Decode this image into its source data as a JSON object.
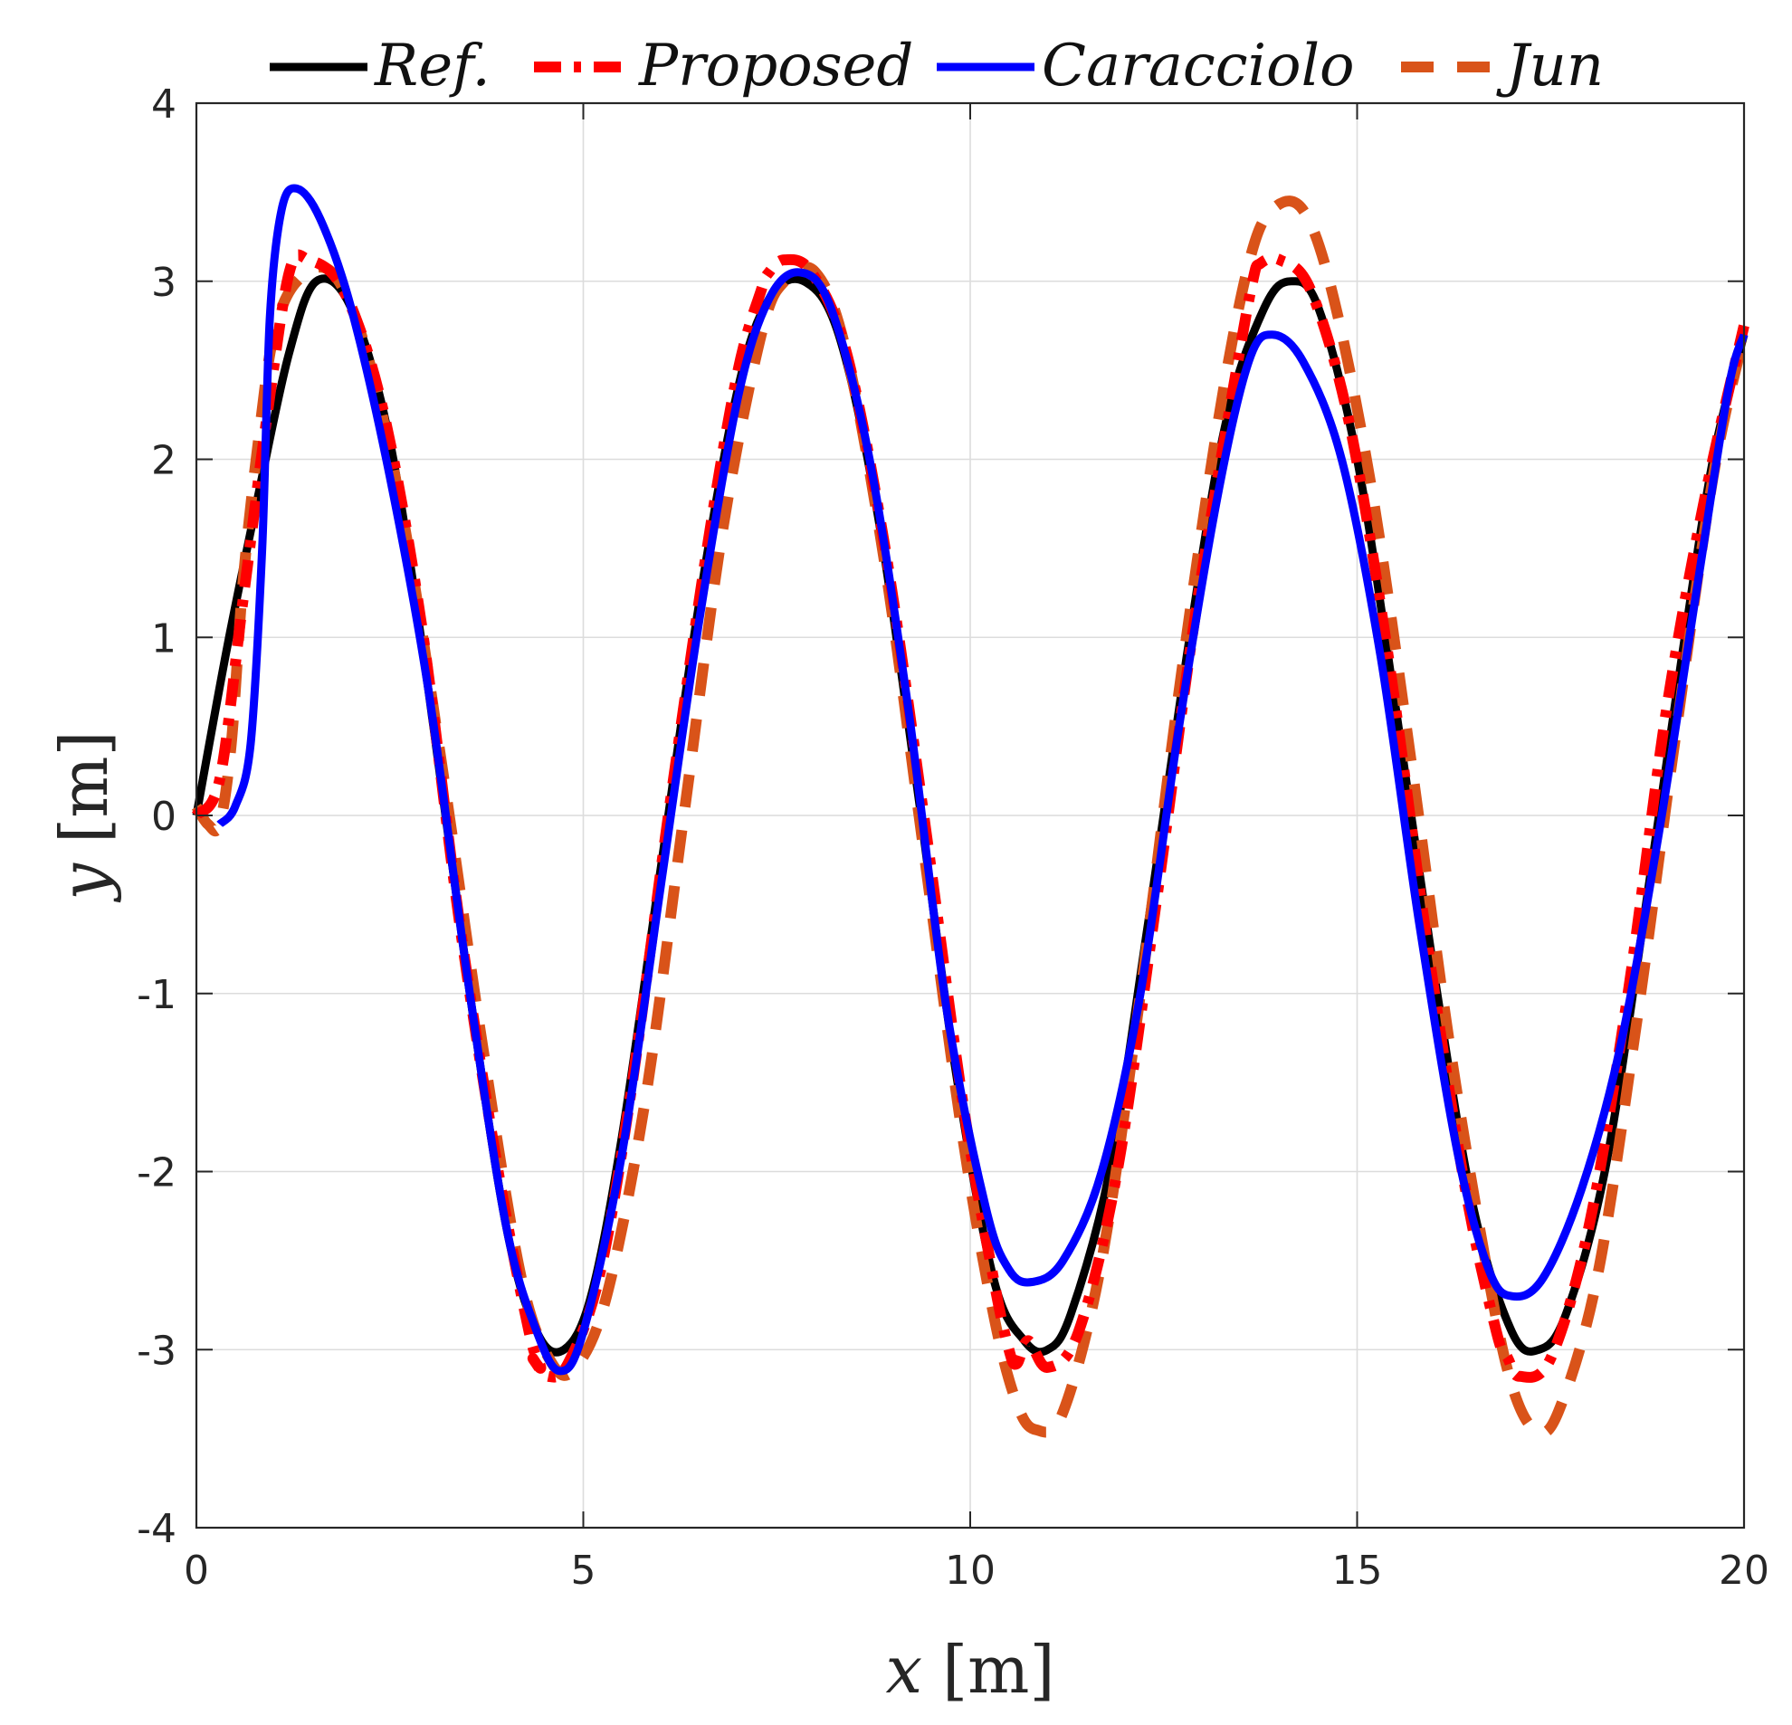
{
  "chart_data": {
    "type": "line",
    "title": "",
    "xlabel_var": "x",
    "ylabel_var": "y",
    "unit": "[m]",
    "xlim": [
      0,
      20
    ],
    "ylim": [
      -4,
      4
    ],
    "xticks": [
      0,
      5,
      10,
      15,
      20
    ],
    "yticks": [
      -4,
      -3,
      -2,
      -1,
      0,
      1,
      2,
      3,
      4
    ],
    "grid": true,
    "legend_position": "top",
    "series": [
      {
        "name": "Ref.",
        "color": "#000000",
        "style": "solid",
        "points": [
          [
            0,
            0
          ],
          [
            0.4,
            0.95
          ],
          [
            0.8,
            1.8
          ],
          [
            1.2,
            2.6
          ],
          [
            1.55,
            3.0
          ],
          [
            2.0,
            2.85
          ],
          [
            2.5,
            2.1
          ],
          [
            3.0,
            0.7
          ],
          [
            3.5,
            -0.9
          ],
          [
            4.0,
            -2.3
          ],
          [
            4.4,
            -2.9
          ],
          [
            4.75,
            -3.0
          ],
          [
            5.1,
            -2.7
          ],
          [
            5.5,
            -1.8
          ],
          [
            6.0,
            -0.3
          ],
          [
            6.5,
            1.2
          ],
          [
            7.0,
            2.4
          ],
          [
            7.4,
            2.9
          ],
          [
            7.85,
            3.0
          ],
          [
            8.3,
            2.7
          ],
          [
            8.8,
            1.7
          ],
          [
            9.3,
            0.2
          ],
          [
            9.8,
            -1.4
          ],
          [
            10.3,
            -2.6
          ],
          [
            10.7,
            -2.95
          ],
          [
            11.0,
            -3.0
          ],
          [
            11.3,
            -2.8
          ],
          [
            11.8,
            -2.0
          ],
          [
            12.3,
            -0.6
          ],
          [
            12.8,
            0.9
          ],
          [
            13.3,
            2.2
          ],
          [
            13.8,
            2.85
          ],
          [
            14.15,
            3.0
          ],
          [
            14.5,
            2.85
          ],
          [
            15.0,
            2.0
          ],
          [
            15.5,
            0.6
          ],
          [
            16.0,
            -0.9
          ],
          [
            16.5,
            -2.2
          ],
          [
            17.0,
            -2.9
          ],
          [
            17.35,
            -3.0
          ],
          [
            17.7,
            -2.8
          ],
          [
            18.2,
            -2.0
          ],
          [
            18.7,
            -0.6
          ],
          [
            19.2,
            0.9
          ],
          [
            19.6,
            2.0
          ],
          [
            20.0,
            2.7
          ]
        ]
      },
      {
        "name": "Proposed",
        "color": "#ff0000",
        "style": "dashdot",
        "points": [
          [
            0,
            0
          ],
          [
            0.3,
            0.2
          ],
          [
            0.6,
            1.2
          ],
          [
            0.9,
            2.2
          ],
          [
            1.2,
            3.05
          ],
          [
            1.45,
            3.12
          ],
          [
            1.9,
            2.95
          ],
          [
            2.4,
            2.3
          ],
          [
            2.9,
            1.1
          ],
          [
            3.4,
            -0.6
          ],
          [
            3.9,
            -2.0
          ],
          [
            4.3,
            -2.9
          ],
          [
            4.45,
            -3.1
          ],
          [
            4.35,
            -3.05
          ],
          [
            4.55,
            -3.15
          ],
          [
            4.8,
            -3.08
          ],
          [
            5.2,
            -2.6
          ],
          [
            5.6,
            -1.6
          ],
          [
            6.1,
            0.0
          ],
          [
            6.6,
            1.5
          ],
          [
            7.0,
            2.5
          ],
          [
            7.3,
            2.95
          ],
          [
            7.4,
            3.05
          ],
          [
            7.6,
            3.12
          ],
          [
            7.95,
            3.05
          ],
          [
            8.4,
            2.6
          ],
          [
            8.9,
            1.5
          ],
          [
            9.4,
            0.0
          ],
          [
            9.9,
            -1.6
          ],
          [
            10.3,
            -2.6
          ],
          [
            10.5,
            -3.0
          ],
          [
            10.6,
            -3.08
          ],
          [
            10.75,
            -2.95
          ],
          [
            11.0,
            -3.1
          ],
          [
            11.4,
            -2.9
          ],
          [
            11.9,
            -2.0
          ],
          [
            12.4,
            -0.5
          ],
          [
            12.9,
            1.1
          ],
          [
            13.4,
            2.4
          ],
          [
            13.65,
            3.0
          ],
          [
            13.75,
            3.1
          ],
          [
            14.0,
            3.12
          ],
          [
            14.4,
            2.95
          ],
          [
            14.9,
            2.2
          ],
          [
            15.4,
            0.9
          ],
          [
            15.9,
            -0.7
          ],
          [
            16.4,
            -2.1
          ],
          [
            16.8,
            -2.9
          ],
          [
            16.95,
            -3.05
          ],
          [
            17.1,
            -3.15
          ],
          [
            17.5,
            -3.05
          ],
          [
            18.0,
            -2.3
          ],
          [
            18.5,
            -1.0
          ],
          [
            19.0,
            0.6
          ],
          [
            19.5,
            1.8
          ],
          [
            20.0,
            2.75
          ]
        ]
      },
      {
        "name": "Caracciolo",
        "color": "#0000ff",
        "style": "solid",
        "points": [
          [
            0.3,
            -0.05
          ],
          [
            0.5,
            0.05
          ],
          [
            0.7,
            0.4
          ],
          [
            0.85,
            1.5
          ],
          [
            0.95,
            2.8
          ],
          [
            1.1,
            3.4
          ],
          [
            1.3,
            3.52
          ],
          [
            1.6,
            3.35
          ],
          [
            2.0,
            2.85
          ],
          [
            2.5,
            1.9
          ],
          [
            3.0,
            0.7
          ],
          [
            3.5,
            -0.9
          ],
          [
            4.0,
            -2.3
          ],
          [
            4.4,
            -2.9
          ],
          [
            4.7,
            -3.12
          ],
          [
            5.0,
            -2.9
          ],
          [
            5.5,
            -1.9
          ],
          [
            6.0,
            -0.4
          ],
          [
            6.5,
            1.1
          ],
          [
            7.0,
            2.35
          ],
          [
            7.4,
            2.9
          ],
          [
            7.8,
            3.05
          ],
          [
            8.2,
            2.85
          ],
          [
            8.7,
            2.0
          ],
          [
            9.2,
            0.6
          ],
          [
            9.7,
            -1.1
          ],
          [
            10.2,
            -2.2
          ],
          [
            10.5,
            -2.55
          ],
          [
            10.8,
            -2.62
          ],
          [
            11.2,
            -2.5
          ],
          [
            11.7,
            -2.0
          ],
          [
            12.2,
            -1.0
          ],
          [
            12.7,
            0.5
          ],
          [
            13.2,
            1.8
          ],
          [
            13.6,
            2.55
          ],
          [
            13.9,
            2.7
          ],
          [
            14.3,
            2.55
          ],
          [
            14.8,
            2.0
          ],
          [
            15.3,
            0.9
          ],
          [
            15.8,
            -0.6
          ],
          [
            16.3,
            -1.9
          ],
          [
            16.7,
            -2.55
          ],
          [
            17.0,
            -2.7
          ],
          [
            17.4,
            -2.6
          ],
          [
            17.9,
            -2.1
          ],
          [
            18.4,
            -1.3
          ],
          [
            18.9,
            -0.1
          ],
          [
            19.4,
            1.3
          ],
          [
            19.8,
            2.4
          ],
          [
            20.0,
            2.7
          ]
        ]
      },
      {
        "name": "Jun",
        "color": "#d95319",
        "style": "dashed",
        "points": [
          [
            0,
            0.05
          ],
          [
            0.15,
            -0.05
          ],
          [
            0.3,
            -0.05
          ],
          [
            0.45,
            0.4
          ],
          [
            0.6,
            1.3
          ],
          [
            0.8,
            2.1
          ],
          [
            1.0,
            2.7
          ],
          [
            1.3,
            3.0
          ],
          [
            1.75,
            3.05
          ],
          [
            2.2,
            2.6
          ],
          [
            2.7,
            1.6
          ],
          [
            3.2,
            0.2
          ],
          [
            3.7,
            -1.3
          ],
          [
            4.2,
            -2.6
          ],
          [
            4.6,
            -3.08
          ],
          [
            4.9,
            -3.1
          ],
          [
            5.3,
            -2.7
          ],
          [
            5.8,
            -1.6
          ],
          [
            6.3,
            0.0
          ],
          [
            6.8,
            1.6
          ],
          [
            7.3,
            2.7
          ],
          [
            7.6,
            3.0
          ],
          [
            8.0,
            3.05
          ],
          [
            8.4,
            2.6
          ],
          [
            8.9,
            1.4
          ],
          [
            9.4,
            -0.2
          ],
          [
            9.9,
            -1.8
          ],
          [
            10.3,
            -2.8
          ],
          [
            10.6,
            -3.3
          ],
          [
            10.85,
            -3.45
          ],
          [
            11.2,
            -3.35
          ],
          [
            11.7,
            -2.5
          ],
          [
            12.2,
            -1.0
          ],
          [
            12.7,
            0.7
          ],
          [
            13.2,
            2.2
          ],
          [
            13.6,
            3.1
          ],
          [
            13.9,
            3.4
          ],
          [
            14.3,
            3.4
          ],
          [
            14.7,
            2.9
          ],
          [
            15.2,
            1.8
          ],
          [
            15.7,
            0.3
          ],
          [
            16.2,
            -1.3
          ],
          [
            16.7,
            -2.6
          ],
          [
            17.0,
            -3.2
          ],
          [
            17.3,
            -3.45
          ],
          [
            17.6,
            -3.35
          ],
          [
            18.1,
            -2.6
          ],
          [
            18.6,
            -1.2
          ],
          [
            19.1,
            0.4
          ],
          [
            19.6,
            1.9
          ],
          [
            20.0,
            2.7
          ]
        ]
      }
    ]
  }
}
